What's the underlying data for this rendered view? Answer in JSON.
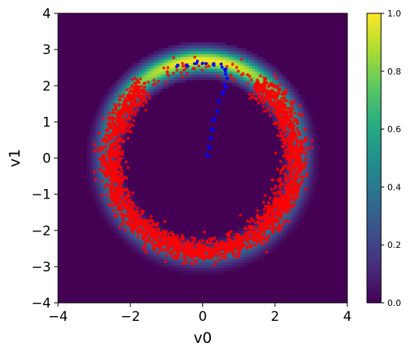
{
  "chart_data": {
    "type": "heatmap",
    "title": "",
    "xlabel": "v0",
    "ylabel": "v1",
    "xlim": [
      -4,
      4
    ],
    "ylim": [
      -4,
      4
    ],
    "xticks": [
      -4,
      -2,
      0,
      2,
      4
    ],
    "yticks": [
      -4,
      -3,
      -2,
      -1,
      0,
      1,
      2,
      3,
      4
    ],
    "xtick_labels": [
      "−4",
      "−2",
      "0",
      "2",
      "4"
    ],
    "ytick_labels": [
      "−4",
      "−3",
      "−2",
      "−1",
      "0",
      "1",
      "2",
      "3",
      "4"
    ],
    "grid": false,
    "colormap": "viridis",
    "colorbar": {
      "range": [
        0.0,
        1.0
      ],
      "ticks": [
        0.0,
        0.2,
        0.4,
        0.6,
        0.8,
        1.0
      ],
      "tick_labels": [
        "0.0",
        "0.2",
        "0.4",
        "0.6",
        "0.8",
        "1.0"
      ]
    },
    "density": {
      "shape": "ring",
      "center": [
        0,
        0
      ],
      "radius": 2.7,
      "width": 0.22,
      "peak_region": "top (angles 45°–135°)"
    },
    "series": [
      {
        "marker_color": "#ff0000",
        "kind": "samples on ring",
        "ring_radius": 2.55,
        "ring_spread": 0.17,
        "gap_angle_deg": [
          55,
          130
        ],
        "approx_count": 2500
      },
      {
        "marker_color": "#0000ff",
        "kind": "trajectory",
        "points": [
          [
            0.15,
            0.1
          ],
          [
            0.18,
            0.3
          ],
          [
            0.22,
            0.55
          ],
          [
            0.27,
            0.8
          ],
          [
            0.33,
            1.05
          ],
          [
            0.4,
            1.3
          ],
          [
            0.48,
            1.55
          ],
          [
            0.55,
            1.8
          ],
          [
            0.62,
            2.0
          ],
          [
            0.68,
            2.25
          ],
          [
            0.62,
            2.45
          ],
          [
            0.5,
            2.55
          ],
          [
            0.3,
            2.6
          ],
          [
            0.05,
            2.62
          ],
          [
            -0.2,
            2.6
          ],
          [
            -0.45,
            2.58
          ],
          [
            -0.7,
            2.55
          ]
        ]
      }
    ]
  }
}
